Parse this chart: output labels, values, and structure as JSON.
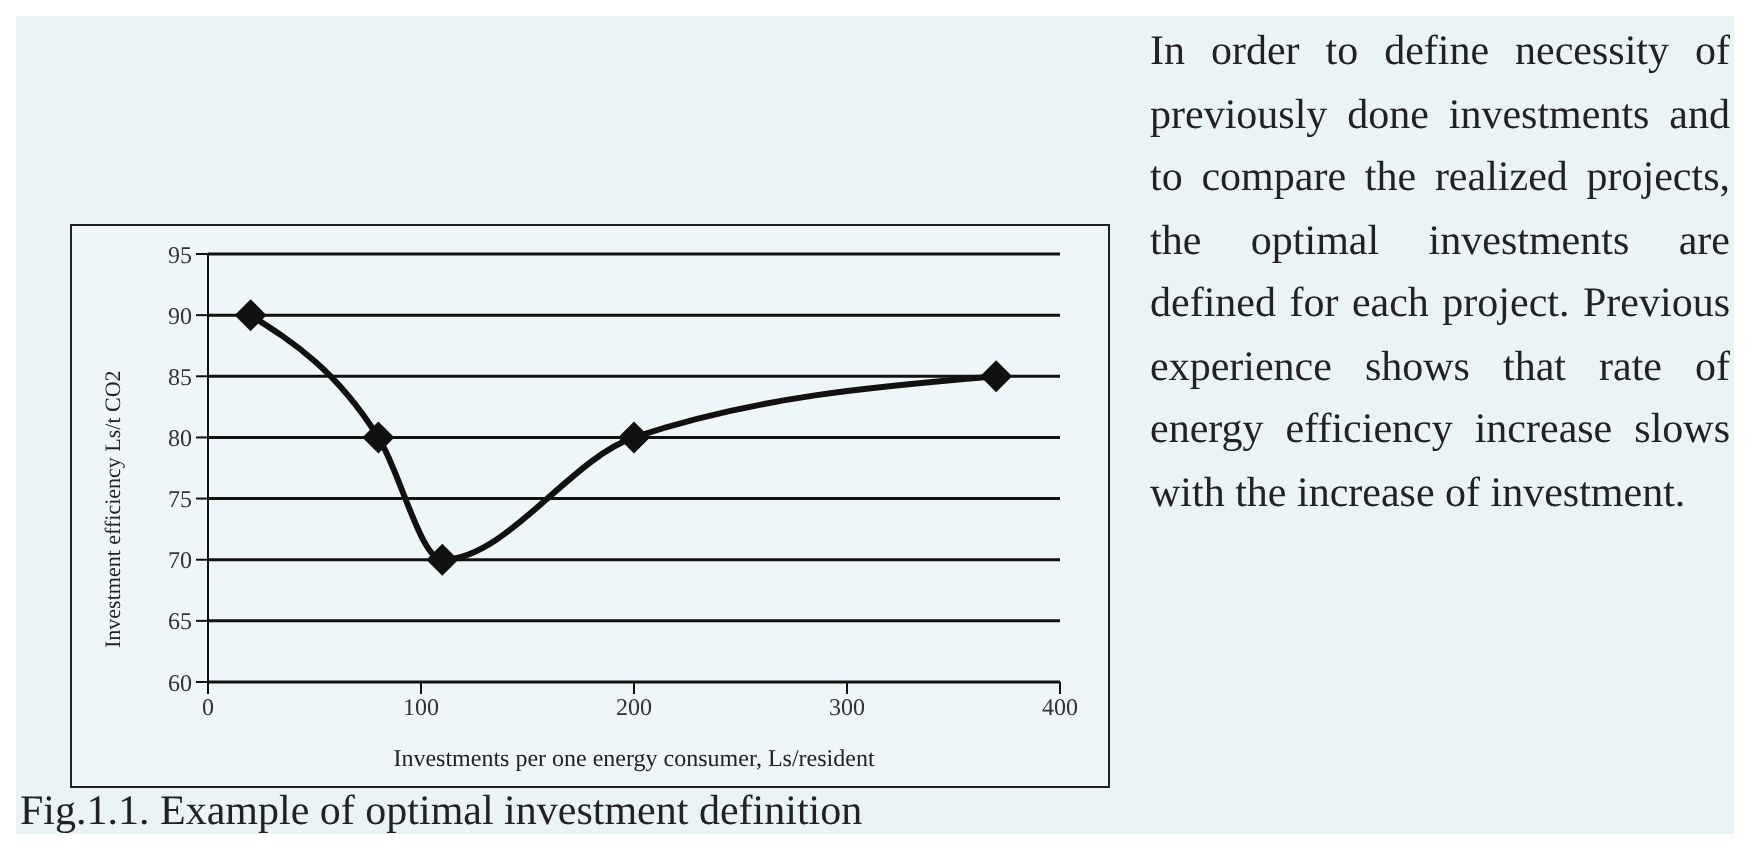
{
  "chart_data": {
    "type": "line",
    "xlabel": "Investments per one energy consumer, Ls/resident",
    "ylabel": "Investment efficiency Ls/t CO2",
    "x": [
      20,
      80,
      110,
      200,
      370
    ],
    "series": [
      {
        "color": "#111111",
        "values": [
          90,
          80,
          70,
          80,
          85
        ]
      }
    ],
    "xlim": [
      0,
      400
    ],
    "xticks": [
      0,
      100,
      200,
      300,
      400
    ],
    "ylim": [
      60,
      95
    ],
    "yticks": [
      60,
      65,
      70,
      75,
      80,
      85,
      90,
      95
    ],
    "grid": "y",
    "legend": false,
    "marker": "diamond",
    "line_style": "solid",
    "annotations": [
      "In order to define necessity of previously done investments and to compare the realized projects, the optimal investments are defined for each project. Previous experience shows that rate of energy efficiency increase slows with the increase of investment.",
      "Fig.1.1. Example of optimal investment definition"
    ]
  }
}
